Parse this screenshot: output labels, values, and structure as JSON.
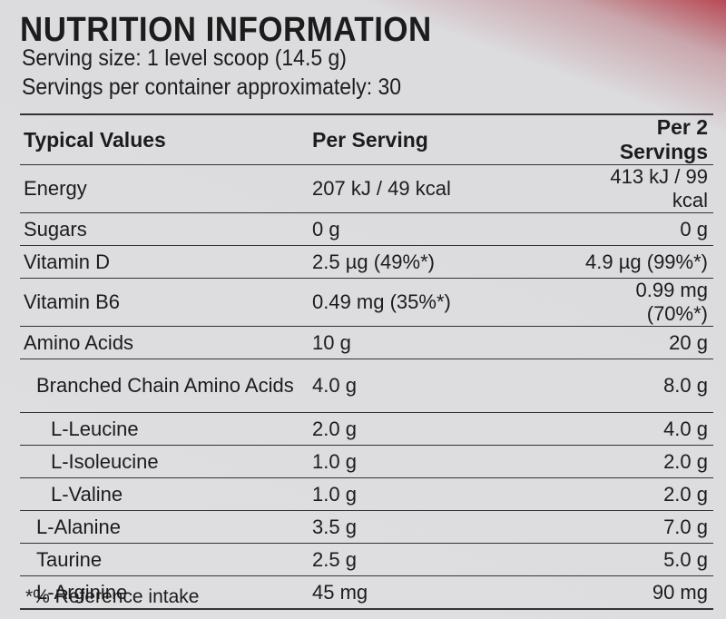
{
  "header": {
    "title": "NUTRITION INFORMATION",
    "serving_size": "Serving size: 1 level scoop (14.5 g)",
    "servings_per_container": "Servings per container approximately: 30"
  },
  "table": {
    "columns": [
      "Typical Values",
      "Per Serving",
      "Per 2 Servings"
    ],
    "rows": [
      [
        "Energy",
        "207 kJ / 49 kcal",
        "413 kJ / 99 kcal"
      ],
      [
        "Sugars",
        "0 g",
        "0 g"
      ],
      [
        "Vitamin D",
        "2.5 µg (49%*)",
        "4.9 µg (99%*)"
      ],
      [
        "Vitamin B6",
        "0.49 mg (35%*)",
        "0.99 mg (70%*)"
      ],
      [
        "Amino Acids",
        "10 g",
        "20 g"
      ],
      [
        "Branched Chain Amino Acids",
        "4.0 g",
        "8.0 g"
      ],
      [
        "L-Leucine",
        "2.0 g",
        "4.0 g"
      ],
      [
        "L-Isoleucine",
        "1.0 g",
        "2.0 g"
      ],
      [
        "L-Valine",
        "1.0 g",
        "2.0 g"
      ],
      [
        "L-Alanine",
        "3.5 g",
        "7.0 g"
      ],
      [
        "Taurine",
        "2.5 g",
        "5.0 g"
      ],
      [
        "L-Arginine",
        "45 mg",
        "90 mg"
      ]
    ]
  },
  "footnote": "*% Reference intake"
}
